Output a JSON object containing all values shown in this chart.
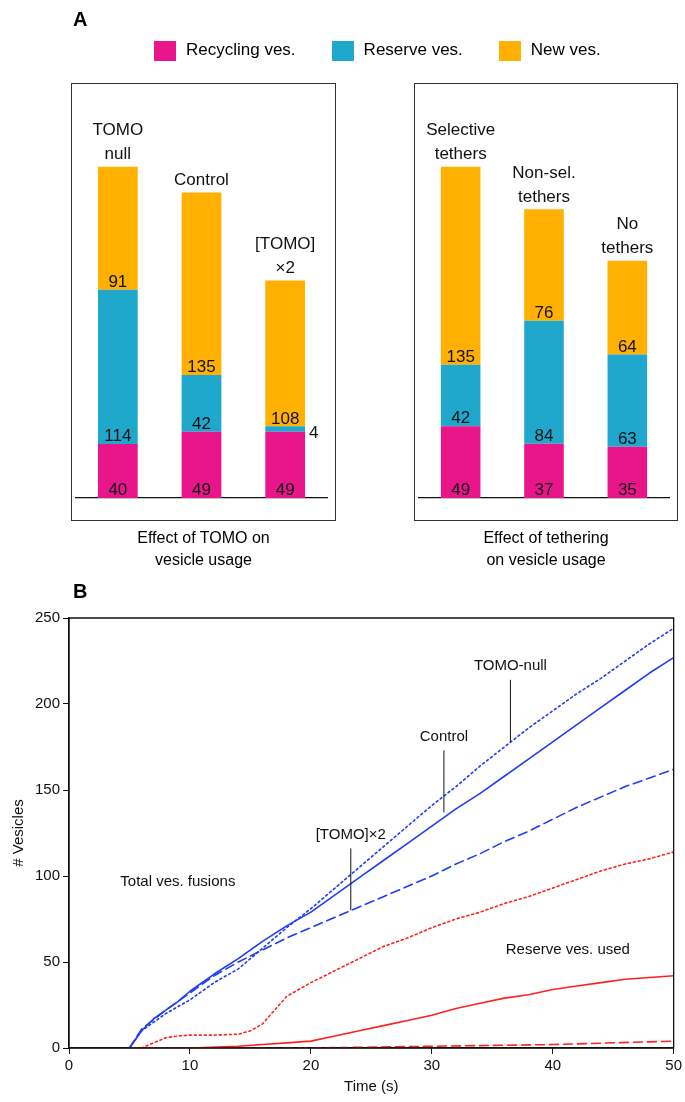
{
  "chart_data": [
    {
      "type": "bar",
      "title": "A",
      "stacked": true,
      "data_labels": true,
      "legend": "top",
      "xlabel": "Effect of TOMO on vesicle usage",
      "categories": [
        "TOMO null",
        "Control",
        "[TOMO] ×2"
      ],
      "series": [
        {
          "name": "Recycling ves.",
          "color": "#e8168a",
          "values": [
            40,
            49,
            49
          ]
        },
        {
          "name": "Reserve ves.",
          "color": "#1fa8cc",
          "values": [
            114,
            42,
            4
          ]
        },
        {
          "name": "New ves.",
          "color": "#ffb000",
          "values": [
            91,
            135,
            108
          ]
        }
      ]
    },
    {
      "type": "bar",
      "stacked": true,
      "data_labels": true,
      "xlabel": "Effect of tethering on vesicle usage",
      "categories": [
        "Selective tethers",
        "Non-sel. tethers",
        "No tethers"
      ],
      "series": [
        {
          "color": "#e8168a",
          "values": [
            49,
            37,
            35
          ]
        },
        {
          "color": "#1fa8cc",
          "values": [
            42,
            84,
            63
          ]
        },
        {
          "color": "#ffb000",
          "values": [
            135,
            76,
            64
          ]
        }
      ]
    },
    {
      "type": "line",
      "title": "B",
      "xlabel": "Time (s)",
      "ylabel": "# Vesicles",
      "xlim": [
        0,
        50
      ],
      "xticks": [
        0,
        10,
        20,
        30,
        40,
        50
      ],
      "ylim": [
        0,
        250
      ],
      "yticks": [
        0,
        50,
        100,
        150,
        200,
        250
      ],
      "series": [
        {
          "color": "#1f3cf5",
          "line_style": "solid",
          "x": [
            5,
            6,
            7,
            8,
            9,
            10,
            12,
            14,
            16,
            18,
            20,
            22,
            24,
            26,
            28,
            30,
            32,
            34,
            36,
            38,
            40,
            42,
            44,
            46,
            48,
            50
          ],
          "values": [
            0,
            10,
            17,
            22,
            27,
            33,
            43,
            52,
            62,
            71,
            79,
            89,
            99,
            109,
            119,
            129,
            139,
            148,
            158,
            168,
            178,
            188,
            198,
            208,
            218,
            227
          ]
        },
        {
          "color": "#1f3cf5",
          "line_style": "dotted",
          "x": [
            5,
            6,
            8,
            10,
            12,
            14,
            15,
            16,
            18,
            20,
            22,
            24,
            26,
            28,
            30,
            32,
            34,
            36,
            38,
            40,
            42,
            44,
            46,
            48,
            50
          ],
          "values": [
            0,
            10,
            20,
            28,
            38,
            46,
            52,
            58,
            70,
            81,
            93,
            105,
            117,
            129,
            141,
            152,
            164,
            175,
            186,
            196,
            206,
            215,
            225,
            235,
            244
          ]
        },
        {
          "color": "#1f3cf5",
          "line_style": "dashed",
          "x": [
            5,
            6,
            8,
            10,
            12,
            14,
            16,
            18,
            20,
            22,
            24,
            26,
            28,
            30,
            32,
            34,
            36,
            38,
            40,
            42,
            44,
            46,
            48,
            50
          ],
          "values": [
            0,
            11,
            22,
            32,
            42,
            50,
            57,
            64,
            70,
            76,
            82,
            88,
            94,
            100,
            107,
            113,
            120,
            126,
            133,
            140,
            146,
            152,
            157,
            162
          ]
        },
        {
          "color": "#ff2020",
          "line_style": "solid",
          "x": [
            5,
            10,
            14,
            16,
            18,
            20,
            22,
            24,
            26,
            28,
            30,
            32,
            34,
            36,
            38,
            40,
            42,
            44,
            46,
            48,
            50
          ],
          "values": [
            0,
            0,
            1,
            2,
            3,
            4,
            7,
            10,
            13,
            16,
            19,
            23,
            26,
            29,
            31,
            34,
            36,
            38,
            40,
            41,
            42
          ]
        },
        {
          "color": "#ff2020",
          "line_style": "dotted",
          "x": [
            6,
            7,
            8,
            9,
            10,
            12,
            14,
            15,
            16,
            17,
            18,
            20,
            22,
            24,
            26,
            28,
            30,
            32,
            34,
            36,
            38,
            40,
            42,
            44,
            46,
            48,
            50
          ],
          "values": [
            0,
            3,
            6,
            7,
            7.5,
            7.5,
            8,
            10,
            14,
            22,
            30,
            38,
            45,
            52,
            59,
            64,
            70,
            75,
            79,
            84,
            88,
            93,
            98,
            103,
            107,
            110,
            114
          ]
        },
        {
          "color": "#ff2020",
          "line_style": "dashed",
          "x": [
            5,
            20,
            30,
            40,
            50
          ],
          "values": [
            0,
            0,
            1,
            2,
            4
          ]
        }
      ],
      "annotations": [
        "Total ves. fusions",
        "Reserve ves. used",
        {
          "text": "TOMO-null",
          "x": 36.5,
          "y": 178
        },
        {
          "text": "Control",
          "x": 31,
          "y": 137
        },
        {
          "text": "[TOMO]×2",
          "x": 23.3,
          "y": 80
        }
      ]
    }
  ]
}
